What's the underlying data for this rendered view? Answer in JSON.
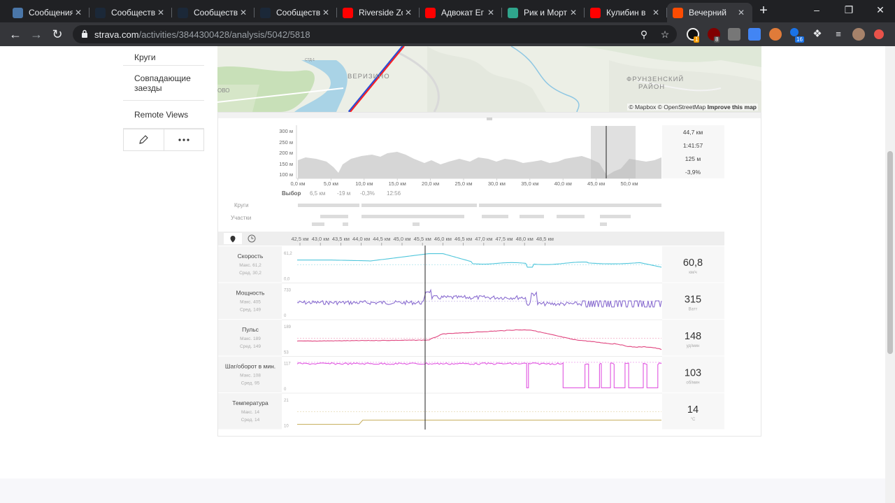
{
  "browser": {
    "tabs": [
      {
        "label": "Сообщения",
        "icon": "chat-icon",
        "color": "#4a76a8"
      },
      {
        "label": "Сообщество",
        "icon": "steam-icon",
        "color": "#1b2838"
      },
      {
        "label": "Сообщество",
        "icon": "steam-icon",
        "color": "#1b2838"
      },
      {
        "label": "Сообщество",
        "icon": "steam-icon",
        "color": "#1b2838"
      },
      {
        "label": "Riverside Zo",
        "icon": "youtube-icon",
        "color": "#ff0000"
      },
      {
        "label": "Адвокат Ег",
        "icon": "youtube-icon",
        "color": "#ff0000"
      },
      {
        "label": "Рик и Морт",
        "icon": "rick-morty-icon",
        "color": "#2fa58c"
      },
      {
        "label": "Кулибин в",
        "icon": "youtube-icon",
        "color": "#ff0000"
      },
      {
        "label": "Вечерний",
        "icon": "strava-icon",
        "color": "#fc4c02"
      }
    ],
    "url_host": "strava.com",
    "url_path": "/activities/3844300428/analysis/5042/5818"
  },
  "sidebar": {
    "items": [
      "Круги",
      "Совпадающие заезды",
      "Remote Views"
    ]
  },
  "map": {
    "attribution_mapbox": "© Mapbox",
    "attribution_osm": "© OpenStreetMap",
    "attribution_improve": "Improve this map",
    "labels": [
      "ВЕРИЗИНО",
      "ФРУНЗЕНСКИЙ",
      "РАЙОН"
    ],
    "small_labels": [
      "СТД-1",
      "ОВО"
    ]
  },
  "elevation": {
    "y_ticks": [
      "300 м",
      "250 м",
      "200 м",
      "150 м",
      "100 м"
    ],
    "x_ticks": [
      "0,0 км",
      "5,0 км",
      "10,0 км",
      "15,0 км",
      "20,0 км",
      "25,0 км",
      "30,0 км",
      "35,0 км",
      "40,0 км",
      "45,0 км",
      "50,0 км"
    ],
    "selection_label": "Выбор",
    "selection_stats": [
      "6,5 км",
      "-19 м",
      "-0,3%",
      "12:56"
    ],
    "summary": [
      "44,7 км",
      "1:41:57",
      "125 м",
      "-3,9%"
    ],
    "laps_label": "Круги",
    "segments_label": "Участки"
  },
  "zoom": {
    "x_ticks": [
      "42,5 км",
      "43,0 км",
      "43,5 км",
      "44,0 км",
      "44,5 км",
      "45,0 км",
      "45,5 км",
      "46,0 км",
      "46,5 км",
      "47,0 км",
      "47,5 км",
      "48,0 км",
      "48,5 км"
    ],
    "metrics": [
      {
        "name": "Скорость",
        "max": "Макс. 61,2",
        "avg": "Сред. 30,2",
        "axis_top": "61,2",
        "axis_bottom": "0,0",
        "value": "60,8",
        "unit": "км/ч",
        "color": "#4fc6db"
      },
      {
        "name": "Мощность",
        "max": "Макс. 405",
        "avg": "Сред. 149",
        "axis_top": "733",
        "axis_bottom": "0",
        "value": "315",
        "unit": "Ватт",
        "color": "#8a6dd0"
      },
      {
        "name": "Пульс",
        "max": "Макс. 189",
        "avg": "Сред. 149",
        "axis_top": "189",
        "axis_bottom": "53",
        "value": "148",
        "unit": "уд/мин",
        "color": "#e0457f"
      },
      {
        "name": "Шаг/оборот в мин.",
        "max": "Макс. 108",
        "avg": "Сред. 95",
        "axis_top": "117",
        "axis_bottom": "0",
        "value": "103",
        "unit": "об/мин",
        "color": "#e055e0"
      },
      {
        "name": "Температура",
        "max": "Макс. 14",
        "avg": "Сред. 14",
        "axis_top": "21",
        "axis_bottom": "10",
        "value": "14",
        "unit": "°C",
        "color": "#c8b060"
      }
    ]
  }
}
